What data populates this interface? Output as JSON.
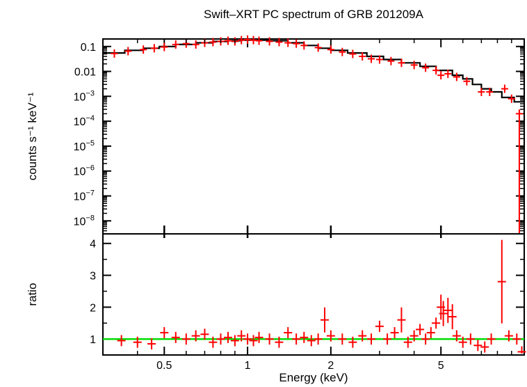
{
  "title": "Swift–XRT PC spectrum of GRB 201209A",
  "colors": {
    "data": "#ff0000",
    "model": "#000000",
    "ratio_line": "#00dd00",
    "frame": "#000000"
  },
  "chart_data": [
    {
      "type": "scatter",
      "panel": "spectrum",
      "ylabel": "counts s⁻¹ keV⁻¹",
      "xscale": "log",
      "yscale": "log",
      "xlim": [
        0.3,
        10
      ],
      "ylim": [
        3e-09,
        0.2
      ],
      "y_ticks": [
        {
          "value": 0.1,
          "base": "0.1",
          "exp": ""
        },
        {
          "value": 0.01,
          "base": "0.01",
          "exp": ""
        },
        {
          "value": 0.001,
          "base": "10",
          "exp": "−3"
        },
        {
          "value": 0.0001,
          "base": "10",
          "exp": "−4"
        },
        {
          "value": 1e-05,
          "base": "10",
          "exp": "−5"
        },
        {
          "value": 1e-06,
          "base": "10",
          "exp": "−6"
        },
        {
          "value": 1e-07,
          "base": "10",
          "exp": "−7"
        },
        {
          "value": 1e-08,
          "base": "10",
          "exp": "−8"
        }
      ],
      "series": [
        {
          "role": "data",
          "points": [
            [
              0.33,
              0.052
            ],
            [
              0.37,
              0.065
            ],
            [
              0.42,
              0.075
            ],
            [
              0.46,
              0.085
            ],
            [
              0.5,
              0.095
            ],
            [
              0.55,
              0.12
            ],
            [
              0.6,
              0.13
            ],
            [
              0.65,
              0.12
            ],
            [
              0.7,
              0.14
            ],
            [
              0.75,
              0.15
            ],
            [
              0.8,
              0.16
            ],
            [
              0.85,
              0.17
            ],
            [
              0.9,
              0.16
            ],
            [
              0.95,
              0.18
            ],
            [
              1.0,
              0.19
            ],
            [
              1.05,
              0.18
            ],
            [
              1.1,
              0.17
            ],
            [
              1.2,
              0.16
            ],
            [
              1.3,
              0.15
            ],
            [
              1.4,
              0.14
            ],
            [
              1.5,
              0.13
            ],
            [
              1.6,
              0.11
            ],
            [
              1.8,
              0.09
            ],
            [
              2.0,
              0.075
            ],
            [
              2.2,
              0.06
            ],
            [
              2.4,
              0.05
            ],
            [
              2.6,
              0.04
            ],
            [
              2.8,
              0.032
            ],
            [
              3.0,
              0.03
            ],
            [
              3.3,
              0.026
            ],
            [
              3.6,
              0.022
            ],
            [
              4.0,
              0.018
            ],
            [
              4.4,
              0.014
            ],
            [
              4.8,
              0.011
            ],
            [
              5.0,
              0.007
            ],
            [
              5.3,
              0.008
            ],
            [
              5.7,
              0.006
            ],
            [
              6.2,
              0.004
            ],
            [
              7.0,
              0.0015
            ],
            [
              7.5,
              0.0015
            ],
            [
              8.5,
              0.002
            ],
            [
              9.0,
              0.0008
            ],
            [
              9.6,
              0.0002
            ]
          ]
        },
        {
          "role": "model",
          "steps": [
            [
              0.3,
              0.055
            ],
            [
              0.36,
              0.07
            ],
            [
              0.42,
              0.085
            ],
            [
              0.48,
              0.1
            ],
            [
              0.55,
              0.12
            ],
            [
              0.65,
              0.14
            ],
            [
              0.75,
              0.16
            ],
            [
              0.85,
              0.17
            ],
            [
              0.95,
              0.18
            ],
            [
              1.05,
              0.18
            ],
            [
              1.2,
              0.17
            ],
            [
              1.4,
              0.14
            ],
            [
              1.6,
              0.11
            ],
            [
              1.8,
              0.085
            ],
            [
              2.0,
              0.07
            ],
            [
              2.3,
              0.055
            ],
            [
              2.7,
              0.04
            ],
            [
              3.1,
              0.03
            ],
            [
              3.6,
              0.022
            ],
            [
              4.2,
              0.016
            ],
            [
              4.8,
              0.011
            ],
            [
              5.5,
              0.007
            ],
            [
              6.0,
              0.005
            ],
            [
              6.5,
              0.003
            ],
            [
              7.0,
              0.002
            ],
            [
              7.6,
              0.0015
            ],
            [
              8.3,
              0.0009
            ],
            [
              9.2,
              0.0006
            ],
            [
              10.0,
              0.0006
            ]
          ]
        }
      ]
    },
    {
      "type": "scatter",
      "panel": "ratio",
      "ylabel": "ratio",
      "xlabel": "Energy (keV)",
      "xscale": "log",
      "xlim": [
        0.3,
        10
      ],
      "ylim": [
        0.5,
        4.3
      ],
      "x_ticks": [
        {
          "value": 0.5,
          "label": "0.5"
        },
        {
          "value": 1,
          "label": "1"
        },
        {
          "value": 2,
          "label": "2"
        },
        {
          "value": 5,
          "label": "5"
        }
      ],
      "y_ticks": [
        {
          "value": 1,
          "label": "1"
        },
        {
          "value": 2,
          "label": "2"
        },
        {
          "value": 3,
          "label": "3"
        },
        {
          "value": 4,
          "label": "4"
        }
      ],
      "reference_line": 1,
      "series": [
        {
          "role": "data",
          "points": [
            [
              0.35,
              0.95
            ],
            [
              0.4,
              0.9
            ],
            [
              0.45,
              0.85
            ],
            [
              0.5,
              1.2
            ],
            [
              0.55,
              1.05
            ],
            [
              0.6,
              1.0
            ],
            [
              0.65,
              1.1
            ],
            [
              0.7,
              1.15
            ],
            [
              0.75,
              0.9
            ],
            [
              0.8,
              1.0
            ],
            [
              0.85,
              1.05
            ],
            [
              0.9,
              0.95
            ],
            [
              0.95,
              1.1
            ],
            [
              1.0,
              1.0
            ],
            [
              1.05,
              0.95
            ],
            [
              1.1,
              1.05
            ],
            [
              1.2,
              1.0
            ],
            [
              1.3,
              0.9
            ],
            [
              1.4,
              1.2
            ],
            [
              1.5,
              1.0
            ],
            [
              1.6,
              1.05
            ],
            [
              1.7,
              0.95
            ],
            [
              1.8,
              1.0
            ],
            [
              1.9,
              1.6
            ],
            [
              2.0,
              1.1
            ],
            [
              2.2,
              1.0
            ],
            [
              2.4,
              0.9
            ],
            [
              2.6,
              1.1
            ],
            [
              2.8,
              1.0
            ],
            [
              3.0,
              1.4
            ],
            [
              3.2,
              1.0
            ],
            [
              3.4,
              1.2
            ],
            [
              3.6,
              1.6
            ],
            [
              3.8,
              0.9
            ],
            [
              4.0,
              1.1
            ],
            [
              4.2,
              1.3
            ],
            [
              4.4,
              1.0
            ],
            [
              4.6,
              1.2
            ],
            [
              4.8,
              1.5
            ],
            [
              5.0,
              2.0
            ],
            [
              5.1,
              1.8
            ],
            [
              5.3,
              1.9
            ],
            [
              5.5,
              1.7
            ],
            [
              5.7,
              1.1
            ],
            [
              6.0,
              0.9
            ],
            [
              6.4,
              1.0
            ],
            [
              6.8,
              0.8
            ],
            [
              7.2,
              0.75
            ],
            [
              7.6,
              1.0
            ],
            [
              8.3,
              2.8
            ],
            [
              8.8,
              1.1
            ],
            [
              9.4,
              1.0
            ],
            [
              9.8,
              0.6
            ]
          ]
        }
      ]
    }
  ]
}
